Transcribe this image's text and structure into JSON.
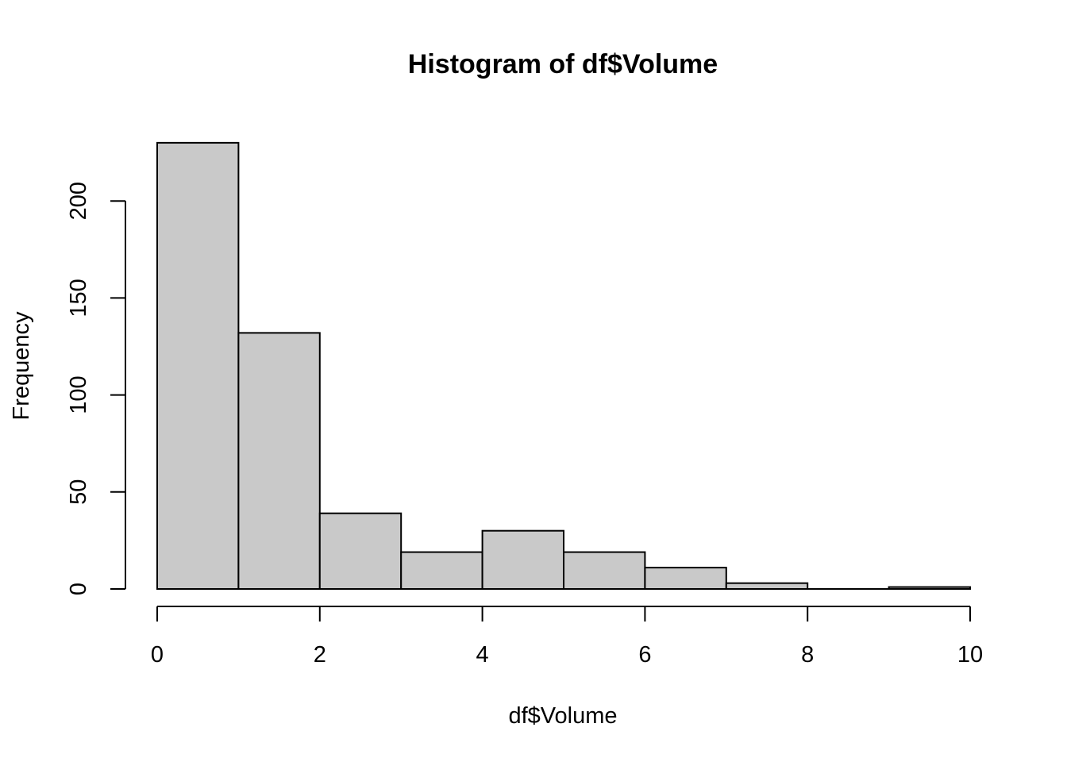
{
  "chart_data": {
    "type": "bar",
    "title": "Histogram of df$Volume",
    "xlabel": "df$Volume",
    "ylabel": "Frequency",
    "bins": [
      {
        "x0": 0,
        "x1": 1,
        "count": 230
      },
      {
        "x0": 1,
        "x1": 2,
        "count": 132
      },
      {
        "x0": 2,
        "x1": 3,
        "count": 39
      },
      {
        "x0": 3,
        "x1": 4,
        "count": 19
      },
      {
        "x0": 4,
        "x1": 5,
        "count": 30
      },
      {
        "x0": 5,
        "x1": 6,
        "count": 19
      },
      {
        "x0": 6,
        "x1": 7,
        "count": 11
      },
      {
        "x0": 7,
        "x1": 8,
        "count": 3
      },
      {
        "x0": 8,
        "x1": 9,
        "count": 0
      },
      {
        "x0": 9,
        "x1": 10,
        "count": 1
      }
    ],
    "xlim": [
      0,
      10
    ],
    "ylim": [
      0,
      230
    ],
    "xticks": [
      0,
      2,
      4,
      6,
      8,
      10
    ],
    "yticks": [
      0,
      50,
      100,
      150,
      200
    ],
    "grid": false,
    "colors": {
      "bar_fill": "#c9c9c9",
      "bar_stroke": "#000000"
    }
  }
}
